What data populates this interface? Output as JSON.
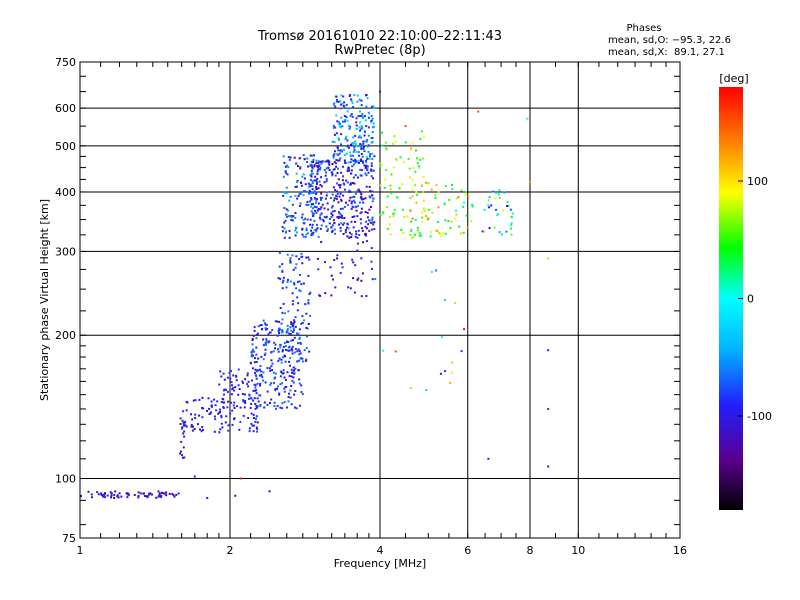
{
  "chart_data": {
    "type": "scatter",
    "title": "Tromsø 20161010 22:10:00–22:11:43",
    "subtitle": "RwPretec (8p)",
    "xlabel": "Frequency [MHz]",
    "ylabel": "Stationary phase Virtual Height [km]",
    "x_scale": "log2",
    "y_scale": "log",
    "xlim": [
      1,
      16
    ],
    "ylim": [
      75,
      750
    ],
    "x_ticks": [
      1,
      2,
      4,
      6,
      8,
      10,
      16
    ],
    "x_tick_labels": [
      "1",
      "2",
      "4",
      "6",
      "8",
      "10",
      "16"
    ],
    "y_ticks": [
      75,
      100,
      200,
      300,
      400,
      500,
      600,
      750
    ],
    "y_tick_labels": [
      "75",
      "100",
      "200",
      "300",
      "400",
      "500",
      "600",
      "750"
    ],
    "grid": true,
    "phase_stats": {
      "heading": "Phases",
      "line_o": "mean, sd,O: −95.3, 22.6",
      "line_x": "mean, sd,X:  89.1, 27.1"
    },
    "colorbar": {
      "label": "[deg]",
      "range": [
        -180,
        180
      ],
      "ticks": [
        100,
        0,
        -100
      ],
      "tick_labels": [
        "100",
        "0",
        "-100"
      ],
      "colors": [
        "#000000",
        "#5a0090",
        "#2020ff",
        "#00b4ff",
        "#00ffff",
        "#00ff00",
        "#ffff00",
        "#ff8000",
        "#ff0000"
      ]
    },
    "series": [
      {
        "regions": [
          {
            "f": [
              1.0,
              1.58
            ],
            "h": [
              91,
              94
            ],
            "n": 70,
            "c": [
              -125,
              -95
            ]
          },
          {
            "f": [
              1.58,
              1.62
            ],
            "h": [
              110,
              135
            ],
            "n": 14,
            "c": [
              -120,
              -90
            ]
          },
          {
            "f": [
              1.6,
              1.95
            ],
            "h": [
              125,
              150
            ],
            "n": 60,
            "c": [
              -115,
              -80
            ]
          },
          {
            "f": [
              1.9,
              2.3
            ],
            "h": [
              125,
              170
            ],
            "n": 110,
            "c": [
              -110,
              -75
            ]
          },
          {
            "f": [
              2.2,
              2.8
            ],
            "h": [
              140,
              215
            ],
            "n": 230,
            "c": [
              -112,
              -60
            ]
          },
          {
            "f": [
              2.5,
              2.9
            ],
            "h": [
              175,
              300
            ],
            "n": 120,
            "c": [
              -110,
              -50
            ]
          },
          {
            "f": [
              2.55,
              3.05
            ],
            "h": [
              320,
              480
            ],
            "n": 170,
            "c": [
              -120,
              -40
            ]
          },
          {
            "f": [
              2.9,
              3.9
            ],
            "h": [
              320,
              470
            ],
            "n": 330,
            "c": [
              -135,
              -60
            ]
          },
          {
            "f": [
              3.2,
              3.9
            ],
            "h": [
              460,
              640
            ],
            "n": 200,
            "c": [
              -110,
              -20
            ]
          },
          {
            "f": [
              3.0,
              3.9
            ],
            "h": [
              240,
              320
            ],
            "n": 40,
            "c": [
              -140,
              -80
            ]
          },
          {
            "f": [
              4.0,
              4.9
            ],
            "h": [
              320,
              540
            ],
            "n": 80,
            "c": [
              20,
              110
            ]
          },
          {
            "f": [
              4.6,
              6.2
            ],
            "h": [
              320,
              420
            ],
            "n": 75,
            "c": [
              0,
              150
            ]
          },
          {
            "f": [
              6.4,
              7.4
            ],
            "h": [
              325,
              410
            ],
            "n": 35,
            "c": [
              -130,
              100
            ]
          },
          {
            "f": [
              3.9,
              6.2
            ],
            "h": [
              150,
              290
            ],
            "n": 14,
            "c": [
              -100,
              140
            ]
          }
        ],
        "points": [
          {
            "x": 4.0,
            "y": 650,
            "c": -120
          },
          {
            "x": 4.5,
            "y": 550,
            "c": 150
          },
          {
            "x": 6.3,
            "y": 590,
            "c": 150
          },
          {
            "x": 7.9,
            "y": 570,
            "c": 0
          },
          {
            "x": 8.0,
            "y": 420,
            "c": 120
          },
          {
            "x": 8.7,
            "y": 290,
            "c": 110
          },
          {
            "x": 8.7,
            "y": 186,
            "c": -100
          },
          {
            "x": 8.7,
            "y": 140,
            "c": -80
          },
          {
            "x": 8.7,
            "y": 106,
            "c": -110
          },
          {
            "x": 6.6,
            "y": 110,
            "c": -100
          },
          {
            "x": 5.3,
            "y": 166,
            "c": -95
          },
          {
            "x": 4.3,
            "y": 185,
            "c": 150
          },
          {
            "x": 5.9,
            "y": 206,
            "c": 175
          },
          {
            "x": 2.1,
            "y": 100,
            "c": 170
          },
          {
            "x": 2.05,
            "y": 92,
            "c": -110
          },
          {
            "x": 2.4,
            "y": 94,
            "c": -120
          },
          {
            "x": 1.7,
            "y": 101,
            "c": -110
          },
          {
            "x": 1.8,
            "y": 91,
            "c": -90
          }
        ]
      }
    ]
  }
}
